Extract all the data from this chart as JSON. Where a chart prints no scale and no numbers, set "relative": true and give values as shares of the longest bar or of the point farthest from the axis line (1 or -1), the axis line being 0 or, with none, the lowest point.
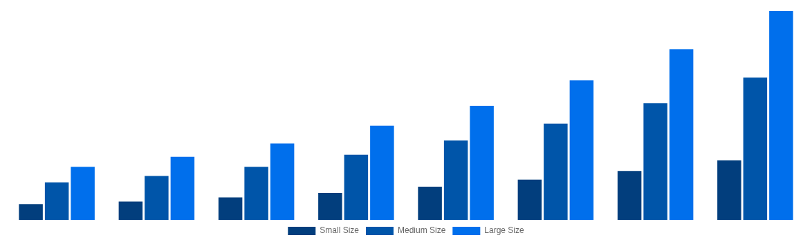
{
  "chart_data": {
    "type": "bar",
    "relative": true,
    "legend": "bottom",
    "categories": [
      null,
      null,
      null,
      null,
      null,
      null,
      null,
      null
    ],
    "series": [
      {
        "name": "Small Size",
        "color": "#023e7d",
        "values": [
          0.075,
          0.088,
          0.108,
          0.129,
          0.159,
          0.193,
          0.234,
          0.285
        ]
      },
      {
        "name": "Medium Size",
        "color": "#0055a9",
        "values": [
          0.18,
          0.21,
          0.254,
          0.312,
          0.38,
          0.461,
          0.559,
          0.681
        ]
      },
      {
        "name": "Large Size",
        "color": "#006fec",
        "values": [
          0.254,
          0.302,
          0.366,
          0.451,
          0.546,
          0.668,
          0.817,
          1
        ]
      }
    ]
  }
}
